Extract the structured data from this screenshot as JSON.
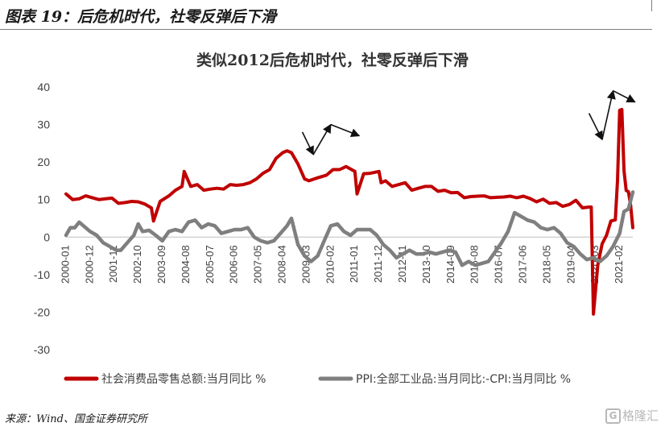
{
  "figure": {
    "caption": "图表 19：后危机时代，社零反弹后下滑",
    "source": "来源：Wind、国金证券研究所",
    "watermark_mark": "G",
    "watermark_text": "格隆汇"
  },
  "chart_data": {
    "type": "line",
    "title": "类似2012后危机时代，社零反弹后下滑",
    "xlabel": "",
    "ylabel": "",
    "ylim": [
      -30,
      40
    ],
    "yticks": [
      -30,
      -20,
      -10,
      0,
      10,
      20,
      30,
      40
    ],
    "x_range": [
      "2000-01",
      "2021-08"
    ],
    "xtick_labels": [
      "2000-01",
      "2000-12",
      "2001-11",
      "2002-10",
      "2003-09",
      "2004-08",
      "2005-07",
      "2006-06",
      "2007-05",
      "2008-04",
      "2009-03",
      "2010-02",
      "2011-01",
      "2011-12",
      "2012-11",
      "2013-10",
      "2014-09",
      "2015-08",
      "2016-07",
      "2017-06",
      "2018-05",
      "2019-04",
      "2020-03",
      "2021-02"
    ],
    "grid": false,
    "legend_position": "bottom",
    "colors": {
      "retail": "#c00000",
      "ppi_cpi": "#7f7f7f"
    },
    "series": [
      {
        "name": "社会消费品零售总额:当月同比 %",
        "color": "#c00000",
        "x": [
          "2000-01",
          "2000-04",
          "2000-07",
          "2000-10",
          "2001-01",
          "2001-04",
          "2001-07",
          "2001-10",
          "2002-01",
          "2002-04",
          "2002-07",
          "2002-10",
          "2003-01",
          "2003-04",
          "2003-05",
          "2003-08",
          "2003-12",
          "2004-03",
          "2004-06",
          "2004-07",
          "2004-10",
          "2005-01",
          "2005-04",
          "2005-07",
          "2005-10",
          "2006-01",
          "2006-04",
          "2006-07",
          "2006-10",
          "2007-01",
          "2007-04",
          "2007-07",
          "2007-10",
          "2008-01",
          "2008-04",
          "2008-06",
          "2008-08",
          "2008-11",
          "2009-02",
          "2009-04",
          "2009-08",
          "2009-12",
          "2010-02",
          "2010-03",
          "2010-06",
          "2010-09",
          "2011-01",
          "2011-02",
          "2011-05",
          "2011-08",
          "2011-12",
          "2012-01",
          "2012-03",
          "2012-06",
          "2012-09",
          "2012-12",
          "2013-03",
          "2013-06",
          "2013-09",
          "2013-12",
          "2014-03",
          "2014-06",
          "2014-09",
          "2014-12",
          "2015-03",
          "2015-06",
          "2015-09",
          "2015-12",
          "2016-03",
          "2016-06",
          "2016-09",
          "2016-12",
          "2017-03",
          "2017-06",
          "2017-09",
          "2017-12",
          "2018-03",
          "2018-06",
          "2018-09",
          "2018-12",
          "2019-03",
          "2019-06",
          "2019-09",
          "2019-12",
          "2020-01",
          "2020-02",
          "2020-04",
          "2020-06",
          "2020-08",
          "2020-10",
          "2020-12",
          "2021-01",
          "2021-02",
          "2021-03",
          "2021-04",
          "2021-05",
          "2021-06",
          "2021-07",
          "2021-08"
        ],
        "values": [
          11.5,
          10.0,
          10.2,
          11.0,
          10.5,
          10.0,
          10.2,
          10.4,
          9.0,
          9.2,
          9.5,
          9.4,
          8.8,
          7.8,
          4.3,
          9.5,
          11.0,
          12.5,
          13.5,
          17.5,
          13.5,
          14.0,
          12.5,
          12.8,
          13.0,
          12.8,
          14.0,
          13.8,
          14.0,
          14.5,
          15.5,
          17.0,
          18.0,
          21.0,
          22.5,
          23.0,
          22.5,
          19.5,
          15.5,
          15.0,
          15.8,
          16.5,
          17.5,
          18.0,
          18.0,
          18.8,
          17.5,
          11.5,
          16.9,
          17.0,
          17.5,
          14.5,
          15.0,
          13.5,
          14.0,
          14.5,
          12.5,
          13.0,
          13.5,
          13.5,
          12.2,
          12.5,
          11.8,
          11.9,
          10.5,
          10.8,
          10.9,
          11.0,
          10.5,
          10.6,
          10.7,
          10.9,
          10.5,
          10.9,
          10.3,
          9.4,
          10.1,
          9.0,
          9.2,
          8.2,
          8.7,
          9.8,
          7.8,
          8.0,
          8.0,
          -20.5,
          -7.5,
          -1.8,
          0.5,
          4.3,
          4.6,
          15.0,
          33.8,
          34.0,
          17.7,
          12.4,
          12.1,
          8.5,
          2.5
        ]
      },
      {
        "name": "PPI:全部工业品:当月同比:-CPI:当月同比 %",
        "color": "#7f7f7f",
        "x": [
          "2000-01",
          "2000-03",
          "2000-05",
          "2000-07",
          "2000-09",
          "2000-12",
          "2001-03",
          "2001-06",
          "2001-09",
          "2001-12",
          "2002-02",
          "2002-05",
          "2002-08",
          "2002-10",
          "2002-12",
          "2003-03",
          "2003-06",
          "2003-09",
          "2003-12",
          "2004-03",
          "2004-06",
          "2004-09",
          "2004-12",
          "2005-03",
          "2005-06",
          "2005-09",
          "2005-12",
          "2006-03",
          "2006-06",
          "2006-09",
          "2006-12",
          "2007-03",
          "2007-06",
          "2007-09",
          "2007-12",
          "2008-03",
          "2008-06",
          "2008-08",
          "2008-11",
          "2009-02",
          "2009-05",
          "2009-08",
          "2009-11",
          "2010-02",
          "2010-05",
          "2010-08",
          "2010-11",
          "2011-02",
          "2011-05",
          "2011-08",
          "2011-11",
          "2012-02",
          "2012-05",
          "2012-08",
          "2012-11",
          "2013-02",
          "2013-05",
          "2013-08",
          "2013-11",
          "2014-02",
          "2014-05",
          "2014-08",
          "2014-11",
          "2015-02",
          "2015-05",
          "2015-08",
          "2015-11",
          "2016-02",
          "2016-05",
          "2016-08",
          "2016-11",
          "2017-02",
          "2017-05",
          "2017-08",
          "2017-11",
          "2018-02",
          "2018-05",
          "2018-08",
          "2018-11",
          "2019-02",
          "2019-05",
          "2019-08",
          "2019-11",
          "2020-02",
          "2020-05",
          "2020-08",
          "2020-11",
          "2021-02",
          "2021-04",
          "2021-06",
          "2021-08"
        ],
        "values": [
          0.5,
          2.5,
          2.5,
          4.0,
          3.0,
          1.5,
          0.5,
          -1.5,
          -2.5,
          -3.5,
          -3.5,
          -1.5,
          0.5,
          3.5,
          1.5,
          1.8,
          0.5,
          -1.0,
          1.5,
          2.0,
          1.5,
          4.0,
          4.5,
          2.5,
          3.5,
          3.0,
          1.0,
          1.5,
          2.0,
          2.0,
          2.5,
          0.0,
          -1.0,
          -1.5,
          -1.0,
          1.0,
          3.0,
          5.0,
          -2.0,
          -5.0,
          -6.5,
          -5.0,
          -1.0,
          3.0,
          3.5,
          1.5,
          0.5,
          2.0,
          2.0,
          2.0,
          0.5,
          -2.0,
          -3.5,
          -5.5,
          -4.5,
          -3.5,
          -4.5,
          -4.5,
          -4.0,
          -4.5,
          -4.0,
          -3.5,
          -4.0,
          -7.5,
          -6.5,
          -7.5,
          -7.0,
          -6.5,
          -4.0,
          -1.5,
          1.5,
          6.5,
          5.5,
          4.5,
          4.0,
          2.5,
          2.0,
          2.5,
          1.0,
          -1.5,
          -2.5,
          -4.5,
          -6.0,
          -5.5,
          -6.5,
          -5.0,
          -2.5,
          1.0,
          6.8,
          7.5,
          12.0
        ]
      }
    ],
    "annotation_arrows": [
      {
        "kind": "down",
        "from": [
          "2009-01",
          28.0
        ],
        "to": [
          "2009-06",
          22.0
        ]
      },
      {
        "kind": "up",
        "from": [
          "2009-06",
          22.0
        ],
        "to": [
          "2010-02",
          30.0
        ]
      },
      {
        "kind": "down",
        "from": [
          "2010-02",
          30.0
        ],
        "to": [
          "2011-03",
          27.0
        ]
      },
      {
        "kind": "down",
        "from": [
          "2019-12",
          33.0
        ],
        "to": [
          "2020-06",
          26.0
        ]
      },
      {
        "kind": "up",
        "from": [
          "2020-06",
          26.0
        ],
        "to": [
          "2020-11",
          39.0
        ]
      },
      {
        "kind": "down",
        "from": [
          "2020-11",
          39.0
        ],
        "to": [
          "2021-09",
          36.0
        ]
      }
    ]
  }
}
